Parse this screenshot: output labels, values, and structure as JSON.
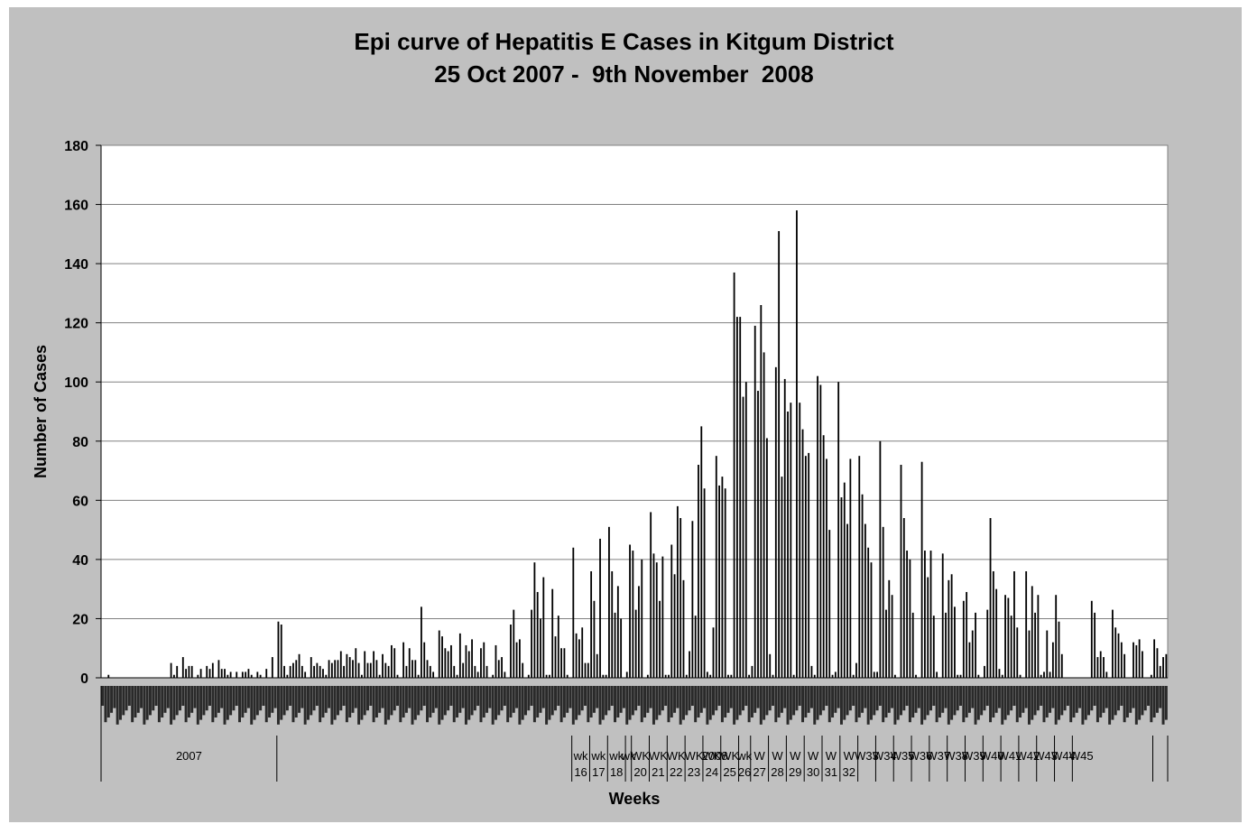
{
  "chart_data": {
    "type": "bar",
    "title": "Epi curve of Hepatitis E Cases in Kitgum District",
    "subtitle": "25 Oct 2007 -  9th November  2008",
    "xlabel": "Weeks",
    "ylabel": "Number of Cases",
    "ylim": [
      0,
      180
    ],
    "yticks": [
      0,
      20,
      40,
      60,
      80,
      100,
      120,
      140,
      160,
      180
    ],
    "grid": true,
    "legend": "none",
    "bar_color": "#000000",
    "plot_background": "#ffffff",
    "frame_background": "#c0c0c0",
    "values": [
      0,
      0,
      1,
      0,
      0,
      0,
      0,
      0,
      0,
      0,
      0,
      0,
      0,
      0,
      0,
      0,
      0,
      0,
      0,
      0,
      0,
      0,
      0,
      5,
      1,
      4,
      0,
      7,
      3,
      4,
      4,
      0,
      1,
      3,
      0,
      4,
      3,
      5,
      0,
      6,
      3,
      3,
      1,
      2,
      0,
      2,
      0,
      2,
      2,
      3,
      1,
      0,
      2,
      1,
      0,
      3,
      0,
      7,
      0,
      19,
      18,
      4,
      1,
      4,
      5,
      6,
      8,
      4,
      2,
      0,
      7,
      4,
      5,
      4,
      3,
      1,
      6,
      5,
      6,
      6,
      9,
      4,
      8,
      7,
      6,
      10,
      5,
      1,
      9,
      5,
      5,
      9,
      6,
      1,
      8,
      5,
      4,
      11,
      10,
      1,
      0,
      12,
      4,
      10,
      6,
      6,
      1,
      24,
      12,
      6,
      4,
      2,
      0,
      16,
      14,
      10,
      9,
      11,
      4,
      1,
      15,
      5,
      11,
      9,
      13,
      4,
      2,
      10,
      12,
      4,
      0,
      1,
      11,
      6,
      7,
      2,
      0,
      18,
      23,
      12,
      13,
      5,
      0,
      1,
      23,
      39,
      29,
      20,
      34,
      1,
      1,
      30,
      14,
      21,
      10,
      10,
      1,
      0,
      44,
      15,
      13,
      17,
      5,
      5,
      36,
      26,
      8,
      47,
      1,
      1,
      51,
      36,
      22,
      31,
      20,
      0,
      2,
      45,
      43,
      23,
      31,
      40,
      0,
      1,
      56,
      42,
      39,
      26,
      41,
      1,
      1,
      45,
      35,
      58,
      54,
      33,
      1,
      9,
      53,
      21,
      72,
      85,
      64,
      2,
      1,
      17,
      75,
      65,
      68,
      64,
      1,
      1,
      137,
      122,
      122,
      95,
      100,
      1,
      4,
      119,
      97,
      126,
      110,
      81,
      8,
      1,
      105,
      151,
      68,
      101,
      90,
      93,
      1,
      158,
      93,
      84,
      75,
      76,
      4,
      1,
      102,
      99,
      82,
      74,
      50,
      1,
      2,
      100,
      61,
      66,
      52,
      74,
      1,
      5,
      75,
      62,
      52,
      44,
      39,
      2,
      2,
      80,
      51,
      23,
      33,
      28,
      1,
      0,
      72,
      54,
      43,
      40,
      22,
      1,
      0,
      73,
      43,
      34,
      43,
      21,
      2,
      0,
      42,
      22,
      33,
      35,
      24,
      1,
      1,
      26,
      29,
      12,
      16,
      22,
      1,
      0,
      4,
      23,
      54,
      36,
      30,
      3,
      1,
      28,
      27,
      21,
      36,
      17,
      1,
      0,
      36,
      16,
      31,
      22,
      28,
      1,
      2,
      16,
      2,
      12,
      28,
      19,
      8,
      0,
      0,
      0,
      0,
      0,
      0,
      0,
      0,
      0,
      26,
      22,
      7,
      9,
      7,
      2,
      0,
      23,
      17,
      15,
      12,
      8,
      0,
      0,
      12,
      11,
      13,
      9,
      0,
      0,
      1,
      13,
      10,
      4,
      7,
      8
    ],
    "year_groups": [
      {
        "label": "2007",
        "start": 0,
        "end": 59
      },
      {
        "label": "2008",
        "start": 59,
        "end": 353
      }
    ],
    "week_groups": [
      {
        "label": "wk",
        "sub": "16",
        "start": 158,
        "end": 164
      },
      {
        "label": "wk",
        "sub": "17",
        "start": 164,
        "end": 170
      },
      {
        "label": "wk",
        "sub": "18",
        "start": 170,
        "end": 176
      },
      {
        "label": "wk",
        "sub": "",
        "start": 176,
        "end": 178
      },
      {
        "label": "WK",
        "sub": "20",
        "start": 178,
        "end": 184
      },
      {
        "label": "WK",
        "sub": "21",
        "start": 184,
        "end": 190
      },
      {
        "label": "WK",
        "sub": "22",
        "start": 190,
        "end": 196
      },
      {
        "label": "WK",
        "sub": "23",
        "start": 196,
        "end": 202
      },
      {
        "label": "WK",
        "sub": "24",
        "start": 202,
        "end": 208
      },
      {
        "label": "WK",
        "sub": "25",
        "start": 208,
        "end": 214
      },
      {
        "label": "wk",
        "sub": "26",
        "start": 214,
        "end": 218
      },
      {
        "label": "W",
        "sub": "27",
        "start": 218,
        "end": 224
      },
      {
        "label": "W",
        "sub": "28",
        "start": 224,
        "end": 230
      },
      {
        "label": "W",
        "sub": "29",
        "start": 230,
        "end": 236
      },
      {
        "label": "W",
        "sub": "30",
        "start": 236,
        "end": 242
      },
      {
        "label": "W",
        "sub": "31",
        "start": 242,
        "end": 248
      },
      {
        "label": "W",
        "sub": "32",
        "start": 248,
        "end": 254
      },
      {
        "label": "W33",
        "sub": "",
        "start": 254,
        "end": 260
      },
      {
        "label": "W34",
        "sub": "",
        "start": 260,
        "end": 266
      },
      {
        "label": "W35",
        "sub": "",
        "start": 266,
        "end": 272
      },
      {
        "label": "W36",
        "sub": "",
        "start": 272,
        "end": 278
      },
      {
        "label": "W37",
        "sub": "",
        "start": 278,
        "end": 284
      },
      {
        "label": "W38",
        "sub": "",
        "start": 284,
        "end": 290
      },
      {
        "label": "W39",
        "sub": "",
        "start": 290,
        "end": 296
      },
      {
        "label": "W40",
        "sub": "",
        "start": 296,
        "end": 302
      },
      {
        "label": "W41",
        "sub": "",
        "start": 302,
        "end": 308
      },
      {
        "label": "W42",
        "sub": "",
        "start": 308,
        "end": 314
      },
      {
        "label": "W43",
        "sub": "",
        "start": 314,
        "end": 320
      },
      {
        "label": "W44",
        "sub": "",
        "start": 320,
        "end": 326
      },
      {
        "label": "W45",
        "sub": "",
        "start": 326,
        "end": 353
      }
    ]
  }
}
